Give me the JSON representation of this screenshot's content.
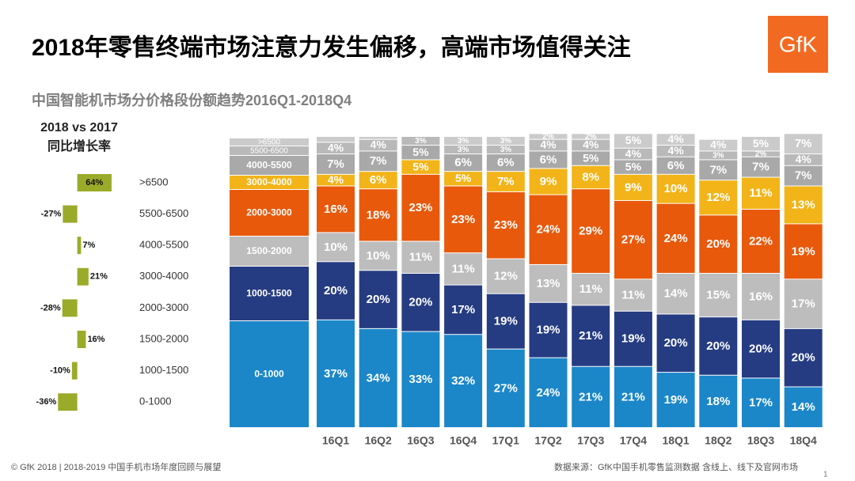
{
  "title": "2018年零售终端市场注意力发生偏移，高端市场值得关注",
  "subtitle": "中国智能机市场分价格段份额趋势2016Q1-2018Q4",
  "logo": "GfK",
  "footer_left": "© GfK 2018 | 2018-2019 中国手机市场年度回顾与展望",
  "footer_right": "数据来源：GfK中国手机零售监测数据  含线上、线下及官网市场",
  "page_number": "1",
  "chart_data": [
    {
      "type": "hbar",
      "title": "2018 vs 2017",
      "subtitle": "同比增长率",
      "color": "#9aab2a",
      "categories": [
        ">6500",
        "5500-6500",
        "4000-5500",
        "3000-4000",
        "2000-3000",
        "1500-2000",
        "1000-1500",
        "0-1000"
      ],
      "values": [
        64,
        -27,
        7,
        21,
        -28,
        16,
        -10,
        -36
      ],
      "value_labels": [
        "64%",
        "-27%",
        "7%",
        "21%",
        "-28%",
        "16%",
        "-10%",
        "-36%"
      ],
      "xlim": [
        -60,
        70
      ]
    },
    {
      "type": "stacked-bar",
      "ylim": [
        0,
        100
      ],
      "categories": [
        "16Q1",
        "16Q2",
        "16Q3",
        "16Q4",
        "17Q1",
        "17Q2",
        "17Q3",
        "17Q4",
        "18Q1",
        "18Q2",
        "18Q3",
        "18Q4"
      ],
      "series": [
        {
          "name": "0-1000",
          "color": "#1b87c9",
          "values": [
            37,
            34,
            33,
            32,
            27,
            24,
            21,
            21,
            19,
            18,
            17,
            14
          ],
          "value_labels": [
            "37%",
            "34%",
            "33%",
            "32%",
            "27%",
            "24%",
            "21%",
            "21%",
            "19%",
            "18%",
            "17%",
            "14%"
          ]
        },
        {
          "name": "1000-1500",
          "color": "#263c82",
          "values": [
            20,
            20,
            20,
            17,
            19,
            19,
            21,
            19,
            20,
            20,
            20,
            20
          ],
          "value_labels": [
            "20%",
            "20%",
            "20%",
            "17%",
            "19%",
            "19%",
            "21%",
            "19%",
            "20%",
            "20%",
            "20%",
            "20%"
          ]
        },
        {
          "name": "1500-2000",
          "color": "#bdbdbd",
          "values": [
            10,
            10,
            11,
            11,
            12,
            13,
            11,
            11,
            14,
            15,
            16,
            17
          ],
          "value_labels": [
            "10%",
            "10%",
            "11%",
            "11%",
            "12%",
            "13%",
            "11%",
            "11%",
            "14%",
            "15%",
            "16%",
            "17%"
          ]
        },
        {
          "name": "2000-3000",
          "color": "#e8590c",
          "values": [
            16,
            18,
            23,
            23,
            23,
            24,
            29,
            27,
            24,
            20,
            22,
            19
          ],
          "value_labels": [
            "16%",
            "18%",
            "23%",
            "23%",
            "23%",
            "24%",
            "29%",
            "27%",
            "24%",
            "20%",
            "22%",
            "19%"
          ]
        },
        {
          "name": "3000-4000",
          "color": "#f2b418",
          "values": [
            4,
            6,
            5,
            5,
            7,
            9,
            8,
            9,
            10,
            12,
            11,
            13
          ],
          "value_labels": [
            "4%",
            "6%",
            "5%",
            "5%",
            "7%",
            "9%",
            "8%",
            "9%",
            "10%",
            "12%",
            "11%",
            "13%"
          ]
        },
        {
          "name": "4000-5500",
          "color": "#a9a9a9",
          "values": [
            7,
            7,
            5,
            6,
            6,
            6,
            5,
            5,
            6,
            7,
            7,
            7
          ],
          "value_labels": [
            "7%",
            "7%",
            "5%",
            "6%",
            "6%",
            "6%",
            "5%",
            "5%",
            "6%",
            "7%",
            "7%",
            "7%"
          ]
        },
        {
          "name": "5500-6500",
          "color": "#b9b9b9",
          "values": [
            4,
            4,
            3,
            3,
            3,
            4,
            4,
            4,
            4,
            3,
            2,
            4
          ],
          "value_labels": [
            "4%",
            "4%",
            "3%",
            "3%",
            "3%",
            "4%",
            "4%",
            "4%",
            "4%",
            "3%",
            "2%",
            "4%"
          ]
        },
        {
          "name": ">6500",
          "color": "#cbcbcb",
          "values": [
            2,
            1,
            null,
            3,
            3,
            2,
            2,
            5,
            4,
            4,
            5,
            7
          ],
          "value_labels": [
            null,
            null,
            null,
            "3%",
            "3%",
            "2%",
            "2%",
            "5%",
            "4%",
            "4%",
            "5%",
            "7%"
          ]
        }
      ]
    }
  ]
}
